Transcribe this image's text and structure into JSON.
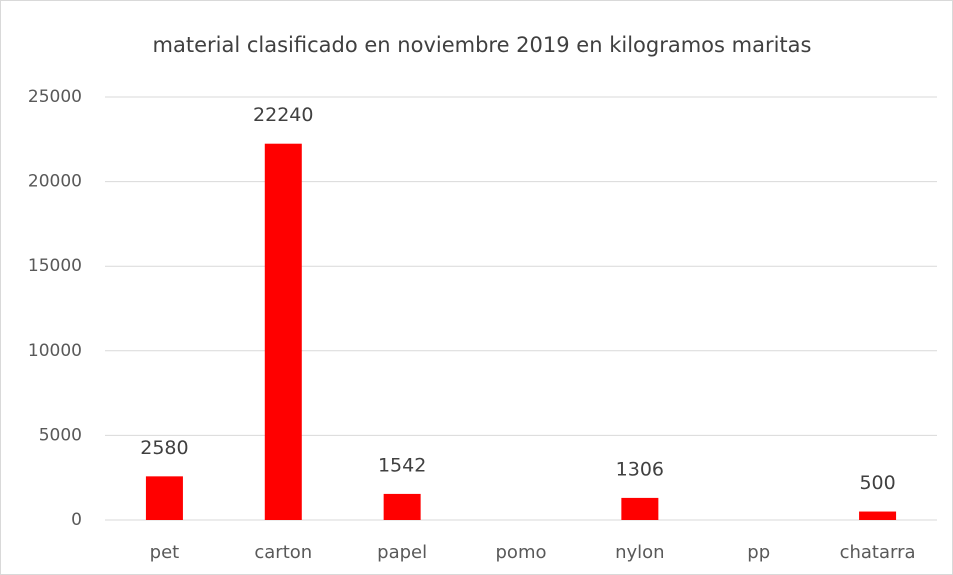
{
  "chart_data": {
    "type": "bar",
    "title": "material clasificado en noviembre 2019 en kilogramos maritas",
    "categories": [
      "pet",
      "carton",
      "papel",
      "pomo",
      "nylon",
      "pp",
      "chatarra"
    ],
    "values": [
      2580,
      22240,
      1542,
      null,
      1306,
      null,
      500
    ],
    "color": "#ff0000",
    "ylim": [
      0,
      25000
    ],
    "yticks": [
      0,
      5000,
      10000,
      15000,
      20000,
      25000
    ],
    "grid": true
  }
}
